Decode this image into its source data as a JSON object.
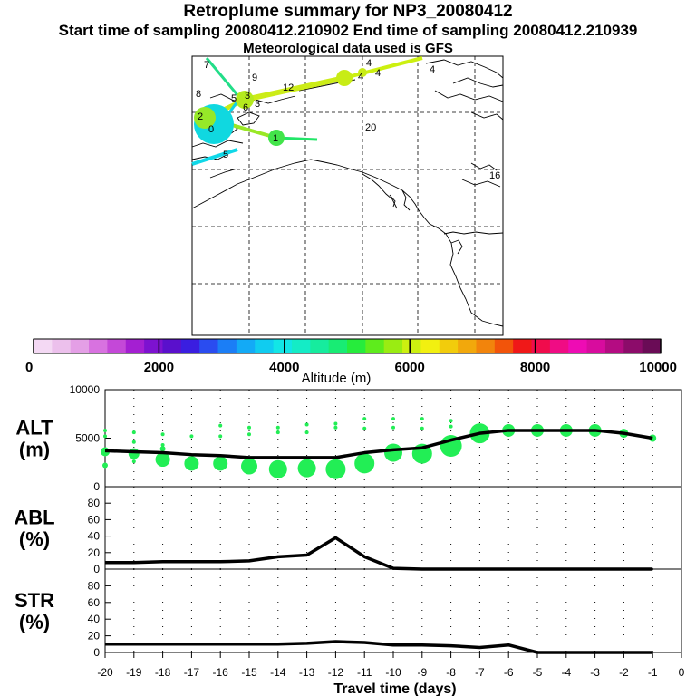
{
  "header": {
    "title": "Retroplume summary for NP3_20080412",
    "subtitle": "Start time of sampling 20080412.210902     End time of sampling 20080412.210939",
    "met_line": "Meteorological data used is GFS"
  },
  "map": {
    "day_labels": [
      "7",
      "9",
      "8",
      "5",
      "3",
      "6",
      "2",
      "1",
      "4",
      "4",
      "4",
      "4",
      "12",
      "20",
      "16",
      "0",
      "3",
      "5"
    ]
  },
  "colorbar": {
    "title": "Altitude (m)",
    "tick_labels": [
      "0",
      "2000",
      "4000",
      "6000",
      "8000",
      "10000"
    ],
    "colors": [
      "#f4d9f4",
      "#ecc0ec",
      "#e49fe6",
      "#d872e0",
      "#c448d8",
      "#a41fd2",
      "#7d12d0",
      "#5a10cc",
      "#3a1ee0",
      "#2a4cf0",
      "#1b7ef6",
      "#13aaf6",
      "#10ccf0",
      "#12e6e6",
      "#14ecc6",
      "#16ec9e",
      "#18ec74",
      "#26ec3c",
      "#5eec1c",
      "#9aec12",
      "#ccf010",
      "#f2f010",
      "#f2cc0c",
      "#f2a80c",
      "#f2840c",
      "#f2540a",
      "#f01818",
      "#f00c4c",
      "#f00c84",
      "#ee0cb4",
      "#d80c9e",
      "#b40c82",
      "#8c0c6a",
      "#6a0c56"
    ]
  },
  "chart_data": [
    {
      "type": "line",
      "panel": "ALT",
      "ylabel": "ALT\n(m)",
      "ylabel_lines": [
        "ALT",
        "(m)"
      ],
      "x": [
        -20,
        -19,
        -18,
        -17,
        -16,
        -15,
        -14,
        -13,
        -12,
        -11,
        -10,
        -9,
        -8,
        -7,
        -6,
        -5,
        -4,
        -3,
        -2,
        -1
      ],
      "values": [
        3700,
        3600,
        3500,
        3300,
        3200,
        3000,
        3000,
        3000,
        3000,
        3500,
        3800,
        4000,
        4800,
        5500,
        5800,
        5800,
        5800,
        5800,
        5500,
        5000
      ],
      "ylim": [
        0,
        10000
      ],
      "ytick_labels": [
        "10000",
        "5000",
        "0"
      ],
      "plume_points": [
        {
          "x": -20,
          "y": 5800,
          "s": 2
        },
        {
          "x": -20,
          "y": 5200,
          "s": 2
        },
        {
          "x": -20,
          "y": 3600,
          "s": 5
        },
        {
          "x": -20,
          "y": 2200,
          "s": 3
        },
        {
          "x": -19,
          "y": 5600,
          "s": 2
        },
        {
          "x": -19,
          "y": 4600,
          "s": 2
        },
        {
          "x": -19,
          "y": 3400,
          "s": 6
        },
        {
          "x": -19,
          "y": 2600,
          "s": 2
        },
        {
          "x": -18,
          "y": 5400,
          "s": 2
        },
        {
          "x": -18,
          "y": 4300,
          "s": 2
        },
        {
          "x": -18,
          "y": 3900,
          "s": 3
        },
        {
          "x": -18,
          "y": 2800,
          "s": 8
        },
        {
          "x": -17,
          "y": 5200,
          "s": 2
        },
        {
          "x": -17,
          "y": 2400,
          "s": 8
        },
        {
          "x": -16,
          "y": 6300,
          "s": 2
        },
        {
          "x": -16,
          "y": 5200,
          "s": 2
        },
        {
          "x": -16,
          "y": 2400,
          "s": 8
        },
        {
          "x": -15,
          "y": 6100,
          "s": 2
        },
        {
          "x": -15,
          "y": 5400,
          "s": 2
        },
        {
          "x": -15,
          "y": 2100,
          "s": 9
        },
        {
          "x": -14,
          "y": 6100,
          "s": 2
        },
        {
          "x": -14,
          "y": 5600,
          "s": 2
        },
        {
          "x": -14,
          "y": 1800,
          "s": 10
        },
        {
          "x": -13,
          "y": 6400,
          "s": 2
        },
        {
          "x": -13,
          "y": 5600,
          "s": 2
        },
        {
          "x": -13,
          "y": 1900,
          "s": 10
        },
        {
          "x": -12,
          "y": 6500,
          "s": 2
        },
        {
          "x": -12,
          "y": 6100,
          "s": 2
        },
        {
          "x": -12,
          "y": 1800,
          "s": 11
        },
        {
          "x": -11,
          "y": 7000,
          "s": 2
        },
        {
          "x": -11,
          "y": 6000,
          "s": 2
        },
        {
          "x": -11,
          "y": 2400,
          "s": 11
        },
        {
          "x": -10,
          "y": 7000,
          "s": 2
        },
        {
          "x": -10,
          "y": 6100,
          "s": 2
        },
        {
          "x": -10,
          "y": 3500,
          "s": 10
        },
        {
          "x": -9,
          "y": 7000,
          "s": 2
        },
        {
          "x": -9,
          "y": 6000,
          "s": 2
        },
        {
          "x": -9,
          "y": 3400,
          "s": 11
        },
        {
          "x": -8,
          "y": 6800,
          "s": 2
        },
        {
          "x": -8,
          "y": 6200,
          "s": 2
        },
        {
          "x": -8,
          "y": 4200,
          "s": 12
        },
        {
          "x": -7,
          "y": 5500,
          "s": 11
        },
        {
          "x": -6,
          "y": 5800,
          "s": 7
        },
        {
          "x": -5,
          "y": 5800,
          "s": 7
        },
        {
          "x": -4,
          "y": 5800,
          "s": 7
        },
        {
          "x": -3,
          "y": 5800,
          "s": 7
        },
        {
          "x": -2,
          "y": 5500,
          "s": 5
        },
        {
          "x": -1,
          "y": 5000,
          "s": 4
        }
      ]
    },
    {
      "type": "line",
      "panel": "ABL",
      "ylabel": "ABL\n(%)",
      "ylabel_lines": [
        "ABL",
        "(%)"
      ],
      "x": [
        -20,
        -19,
        -18,
        -17,
        -16,
        -15,
        -14,
        -13,
        -12,
        -11,
        -10,
        -9,
        -8,
        -7,
        -6,
        -5,
        -4,
        -3,
        -2,
        -1
      ],
      "values": [
        8,
        8,
        9,
        9,
        9,
        10,
        15,
        17,
        38,
        15,
        1,
        0,
        0,
        0,
        0,
        0,
        0,
        0,
        0,
        0
      ],
      "ylim": [
        0,
        100
      ],
      "ytick_labels": [
        "80",
        "60",
        "40",
        "20",
        "0"
      ]
    },
    {
      "type": "line",
      "panel": "STR",
      "ylabel": "STR\n(%)",
      "ylabel_lines": [
        "STR",
        "(%)"
      ],
      "x": [
        -20,
        -19,
        -18,
        -17,
        -16,
        -15,
        -14,
        -13,
        -12,
        -11,
        -10,
        -9,
        -8,
        -7,
        -6,
        -5,
        -4,
        -3,
        -2,
        -1
      ],
      "values": [
        10,
        10,
        10,
        10,
        10,
        10,
        10,
        11,
        13,
        12,
        9,
        9,
        8,
        6,
        9,
        0,
        0,
        0,
        0,
        0
      ],
      "ylim": [
        0,
        100
      ],
      "ytick_labels": [
        "80",
        "60",
        "40",
        "20",
        "0"
      ],
      "xtick_labels": [
        "-20",
        "-19",
        "-18",
        "-17",
        "-16",
        "-15",
        "-14",
        "-13",
        "-12",
        "-11",
        "-10",
        "-9",
        "-8",
        "-7",
        "-6",
        "-5",
        "-4",
        "-3",
        "-2",
        "-1",
        "0"
      ],
      "xlabel": "Travel time (days)"
    }
  ]
}
